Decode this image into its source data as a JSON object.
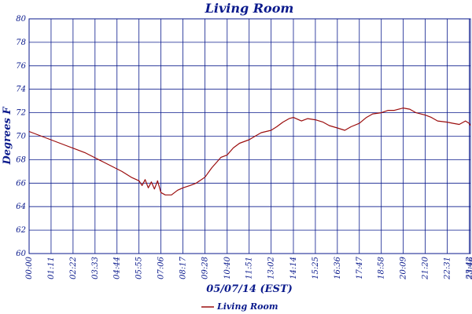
{
  "chart_data": {
    "type": "line",
    "title": "Living Room",
    "xlabel": "05/07/14 (EST)",
    "ylabel": "Degrees F",
    "ylim": [
      60,
      80
    ],
    "yticks": [
      "60",
      "62",
      "64",
      "66",
      "68",
      "70",
      "72",
      "74",
      "76",
      "78",
      "80"
    ],
    "xlim": [
      "00:00",
      "23:46"
    ],
    "xticks": [
      "00:00",
      "01:11",
      "02:22",
      "03:33",
      "04:44",
      "05:55",
      "07:06",
      "08:17",
      "09:28",
      "10:40",
      "11:51",
      "13:02",
      "14:14",
      "15:25",
      "16:36",
      "17:47",
      "18:58",
      "20:09",
      "21:20",
      "22:31",
      "23:42",
      "23:46"
    ],
    "grid": true,
    "legend": "bottom-left",
    "colors": {
      "series": "#9b0d0d",
      "axis": "#0a1a8c",
      "grid": "#0a1a8c"
    },
    "series": [
      {
        "name": "Living Room",
        "x": [
          "00:00",
          "00:30",
          "01:00",
          "01:30",
          "02:00",
          "02:30",
          "03:00",
          "03:30",
          "04:00",
          "04:30",
          "05:00",
          "05:30",
          "05:55",
          "06:05",
          "06:15",
          "06:25",
          "06:35",
          "06:45",
          "06:55",
          "07:06",
          "07:20",
          "07:40",
          "08:00",
          "08:17",
          "08:40",
          "09:00",
          "09:28",
          "09:50",
          "10:10",
          "10:20",
          "10:40",
          "11:00",
          "11:20",
          "11:51",
          "12:10",
          "12:30",
          "13:02",
          "13:20",
          "13:40",
          "14:00",
          "14:14",
          "14:40",
          "15:00",
          "15:25",
          "15:50",
          "16:10",
          "16:36",
          "17:00",
          "17:20",
          "17:47",
          "18:10",
          "18:30",
          "18:58",
          "19:20",
          "19:40",
          "20:09",
          "20:30",
          "20:50",
          "21:20",
          "21:40",
          "22:00",
          "22:31",
          "22:50",
          "23:10",
          "23:30",
          "23:42",
          "23:46"
        ],
        "values": [
          70.4,
          70.1,
          69.8,
          69.5,
          69.2,
          68.9,
          68.6,
          68.2,
          67.8,
          67.4,
          67.0,
          66.5,
          66.2,
          65.8,
          66.3,
          65.6,
          66.1,
          65.5,
          66.2,
          65.2,
          65.0,
          65.0,
          65.4,
          65.6,
          65.8,
          66.0,
          66.5,
          67.3,
          67.9,
          68.2,
          68.4,
          69.0,
          69.4,
          69.7,
          70.0,
          70.3,
          70.5,
          70.8,
          71.2,
          71.5,
          71.6,
          71.3,
          71.5,
          71.4,
          71.2,
          70.9,
          70.7,
          70.5,
          70.8,
          71.1,
          71.6,
          71.9,
          72.0,
          72.2,
          72.2,
          72.4,
          72.3,
          72.0,
          71.8,
          71.6,
          71.3,
          71.2,
          71.1,
          71.0,
          71.3,
          71.1,
          70.9
        ]
      }
    ]
  }
}
